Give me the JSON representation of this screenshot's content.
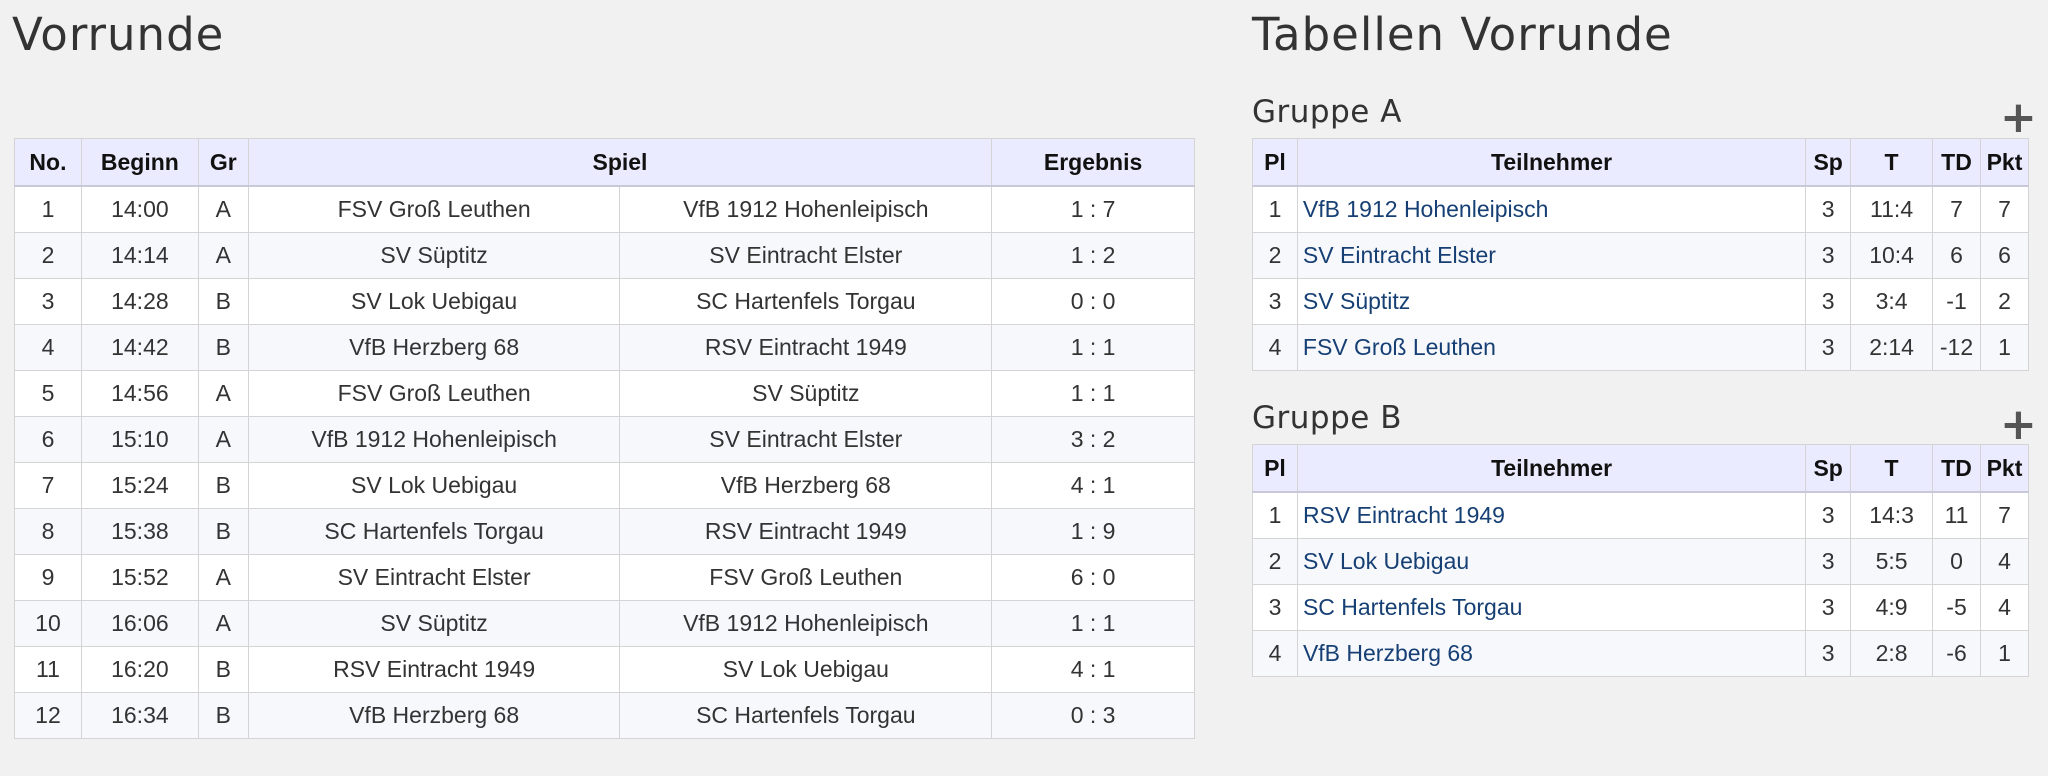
{
  "left_title": "Vorrunde",
  "right_title": "Tabellen Vorrunde",
  "matches": {
    "headers": {
      "no": "No.",
      "beginn": "Beginn",
      "gr": "Gr",
      "spiel": "Spiel",
      "ergebnis": "Ergebnis"
    },
    "rows": [
      {
        "no": "1",
        "beginn": "14:00",
        "gr": "A",
        "home": "FSV Groß Leuthen",
        "away": "VfB 1912 Hohenleipisch",
        "result": "1 : 7"
      },
      {
        "no": "2",
        "beginn": "14:14",
        "gr": "A",
        "home": "SV Süptitz",
        "away": "SV Eintracht Elster",
        "result": "1 : 2"
      },
      {
        "no": "3",
        "beginn": "14:28",
        "gr": "B",
        "home": "SV Lok Uebigau",
        "away": "SC Hartenfels Torgau",
        "result": "0 : 0"
      },
      {
        "no": "4",
        "beginn": "14:42",
        "gr": "B",
        "home": "VfB Herzberg 68",
        "away": "RSV Eintracht 1949",
        "result": "1 : 1"
      },
      {
        "no": "5",
        "beginn": "14:56",
        "gr": "A",
        "home": "FSV Groß Leuthen",
        "away": "SV Süptitz",
        "result": "1 : 1"
      },
      {
        "no": "6",
        "beginn": "15:10",
        "gr": "A",
        "home": "VfB 1912 Hohenleipisch",
        "away": "SV Eintracht Elster",
        "result": "3 : 2"
      },
      {
        "no": "7",
        "beginn": "15:24",
        "gr": "B",
        "home": "SV Lok Uebigau",
        "away": "VfB Herzberg 68",
        "result": "4 : 1"
      },
      {
        "no": "8",
        "beginn": "15:38",
        "gr": "B",
        "home": "SC Hartenfels Torgau",
        "away": "RSV Eintracht 1949",
        "result": "1 : 9"
      },
      {
        "no": "9",
        "beginn": "15:52",
        "gr": "A",
        "home": "SV Eintracht Elster",
        "away": "FSV Groß Leuthen",
        "result": "6 : 0"
      },
      {
        "no": "10",
        "beginn": "16:06",
        "gr": "A",
        "home": "SV Süptitz",
        "away": "VfB 1912 Hohenleipisch",
        "result": "1 : 1"
      },
      {
        "no": "11",
        "beginn": "16:20",
        "gr": "B",
        "home": "RSV Eintracht 1949",
        "away": "SV Lok Uebigau",
        "result": "4 : 1"
      },
      {
        "no": "12",
        "beginn": "16:34",
        "gr": "B",
        "home": "VfB Herzberg 68",
        "away": "SC Hartenfels Torgau",
        "result": "0 : 3"
      }
    ]
  },
  "standings_headers": {
    "pl": "Pl",
    "teilnehmer": "Teilnehmer",
    "sp": "Sp",
    "t": "T",
    "td": "TD",
    "pkt": "Pkt"
  },
  "expand_icon": "+",
  "groups": [
    {
      "title": "Gruppe A",
      "rows": [
        {
          "pl": "1",
          "team": "VfB 1912 Hohenleipisch",
          "sp": "3",
          "t": "11:4",
          "td": "7",
          "pkt": "7"
        },
        {
          "pl": "2",
          "team": "SV Eintracht Elster",
          "sp": "3",
          "t": "10:4",
          "td": "6",
          "pkt": "6"
        },
        {
          "pl": "3",
          "team": "SV Süptitz",
          "sp": "3",
          "t": "3:4",
          "td": "-1",
          "pkt": "2"
        },
        {
          "pl": "4",
          "team": "FSV Groß Leuthen",
          "sp": "3",
          "t": "2:14",
          "td": "-12",
          "pkt": "1"
        }
      ]
    },
    {
      "title": "Gruppe B",
      "rows": [
        {
          "pl": "1",
          "team": "RSV Eintracht 1949",
          "sp": "3",
          "t": "14:3",
          "td": "11",
          "pkt": "7"
        },
        {
          "pl": "2",
          "team": "SV Lok Uebigau",
          "sp": "3",
          "t": "5:5",
          "td": "0",
          "pkt": "4"
        },
        {
          "pl": "3",
          "team": "SC Hartenfels Torgau",
          "sp": "3",
          "t": "4:9",
          "td": "-5",
          "pkt": "4"
        },
        {
          "pl": "4",
          "team": "VfB Herzberg 68",
          "sp": "3",
          "t": "2:8",
          "td": "-6",
          "pkt": "1"
        }
      ]
    }
  ]
}
